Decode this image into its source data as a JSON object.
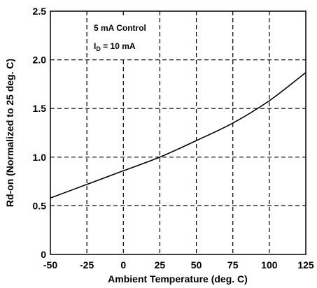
{
  "chart_data": {
    "type": "line",
    "title": "",
    "xlabel": "Ambient Temperature (deg. C)",
    "ylabel": "Rd-on (Normalized to 25 deg. C)",
    "xlim": [
      -50,
      125
    ],
    "ylim": [
      0,
      2.5
    ],
    "x_ticks": [
      -50,
      -25,
      0,
      25,
      50,
      75,
      100,
      125
    ],
    "x_tick_labels": [
      "-50",
      "-25",
      "0",
      "25",
      "50",
      "75",
      "100",
      "125"
    ],
    "y_ticks": [
      0,
      0.5,
      1.0,
      1.5,
      2.0,
      2.5
    ],
    "y_tick_labels": [
      "0",
      "0.5",
      "1.0",
      "1.5",
      "2.0",
      "2.5"
    ],
    "grid": true,
    "annotations": [
      "5 mA Control"
    ],
    "annotation_id": {
      "prefix": "I",
      "subscript": "D",
      "suffix": " = 10 mA"
    },
    "series": [
      {
        "color": "#000000",
        "x": [
          -50,
          -25,
          0,
          25,
          50,
          75,
          100,
          125
        ],
        "y": [
          0.58,
          0.72,
          0.86,
          1.0,
          1.17,
          1.35,
          1.58,
          1.87
        ]
      }
    ]
  }
}
